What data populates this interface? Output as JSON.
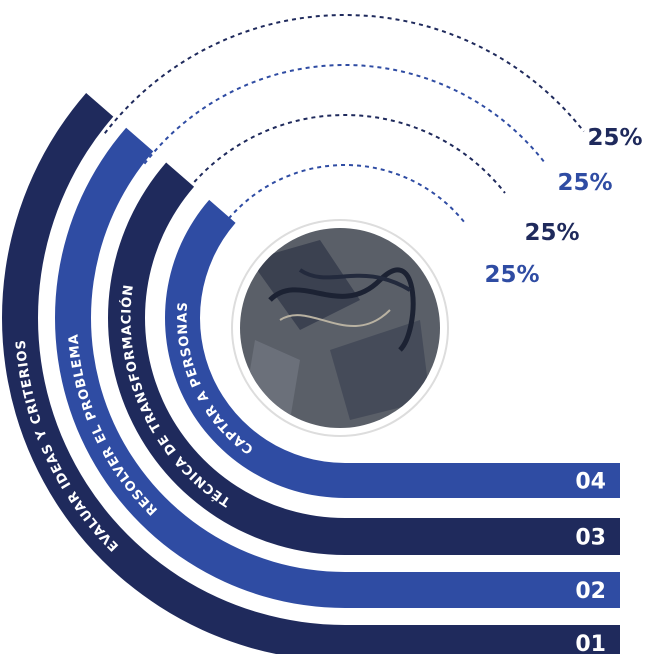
{
  "items": [
    {
      "number": "01",
      "label": "EVALUAR IDEAS Y CRITERIOS",
      "percent": "25%"
    },
    {
      "number": "02",
      "label": "RESOLVER EL PROBLEMA",
      "percent": "25%"
    },
    {
      "number": "03",
      "label": "TÉCNICA DE TRANSFORMACIÓN",
      "percent": "25%"
    },
    {
      "number": "04",
      "label": "CAPTAR A PERSONAS",
      "percent": "25%"
    }
  ]
}
